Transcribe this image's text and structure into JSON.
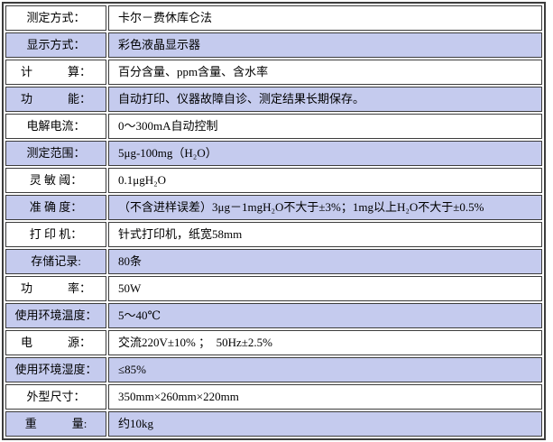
{
  "colors": {
    "alt_row_background": "#c5cbee",
    "row_background": "#ffffff",
    "border": "#3c3c3c",
    "text": "#000000"
  },
  "table": {
    "rows": [
      {
        "label": "测定方式：",
        "value": "卡尔－费休库仑法"
      },
      {
        "label": "显示方式：",
        "value": "彩色液晶显示器"
      },
      {
        "label": "计　　　算：",
        "value": "百分含量、ppm含量、含水率"
      },
      {
        "label": "功　　　能：",
        "value": "自动打印、仪器故障自诊、测定结果长期保存。"
      },
      {
        "label": "电解电流：",
        "value": "0～300mA自动控制"
      },
      {
        "label": "测定范围：",
        "value": "5μg-100mg（H₂O）"
      },
      {
        "label": "灵 敏 阈：",
        "value": "0.1μgH₂O"
      },
      {
        "label": "准 确 度：",
        "value": "（不含进样误差）3μg－1mgH₂O不大于±3%；1mg以上H₂O不大于±0.5%"
      },
      {
        "label": "打 印 机：",
        "value": "针式打印机，纸宽58mm"
      },
      {
        "label": "存储记录:",
        "value": "80条"
      },
      {
        "label": "功　　　率：",
        "value": "50W"
      },
      {
        "label": "使用环境温度：",
        "value": "5～40℃"
      },
      {
        "label": "电　　　源：",
        "value": "交流220V±10% ；  50Hz±2.5%"
      },
      {
        "label": "使用环境湿度：",
        "value": "≤85%"
      },
      {
        "label": "外型尺寸：",
        "value": "350mm×260mm×220mm"
      },
      {
        "label": "重　　　量:",
        "value": "约10kg"
      }
    ]
  }
}
